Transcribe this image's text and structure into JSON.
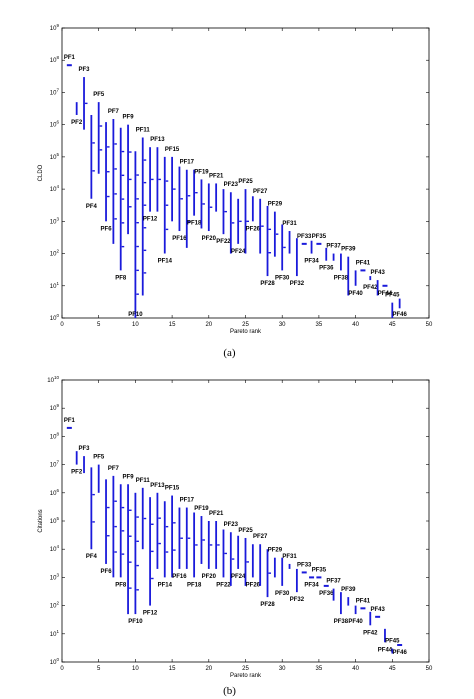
{
  "chart_data": [
    {
      "type": "scatter",
      "caption": "(a)",
      "xlabel": "Pareto rank",
      "ylabel": "CLDO",
      "xlim": [
        0,
        50
      ],
      "ylim": [
        1,
        1000000000
      ],
      "yscale": "log",
      "x_ticks": [
        "0",
        "5",
        "10",
        "15",
        "20",
        "25",
        "30",
        "35",
        "40",
        "45",
        "50"
      ],
      "y_ticks": [
        "10^0",
        "10^1",
        "10^2",
        "10^3",
        "10^4",
        "10^5",
        "10^6",
        "10^7",
        "10^8",
        "10^9"
      ],
      "series_color": "#1a1adb",
      "fronts": [
        {
          "rank": 1,
          "label": "PF1",
          "max": 70000000,
          "min": 70000000
        },
        {
          "rank": 2,
          "label": "PF2",
          "max": 5000000,
          "min": 2000000
        },
        {
          "rank": 3,
          "label": "PF3",
          "max": 30000000,
          "min": 700000
        },
        {
          "rank": 4,
          "label": "PF4",
          "max": 2000000,
          "min": 5000
        },
        {
          "rank": 5,
          "label": "PF5",
          "max": 5000000,
          "min": 30000
        },
        {
          "rank": 6,
          "label": "PF6",
          "max": 1200000,
          "min": 1000
        },
        {
          "rank": 7,
          "label": "PF7",
          "max": 1500000,
          "min": 200
        },
        {
          "rank": 8,
          "label": "PF8",
          "max": 800000,
          "min": 30
        },
        {
          "rank": 9,
          "label": "PF9",
          "max": 1000000,
          "min": 400
        },
        {
          "rank": 10,
          "label": "PF10",
          "max": 150000,
          "min": 1
        },
        {
          "rank": 11,
          "label": "PF11",
          "max": 400000,
          "min": 5
        },
        {
          "rank": 12,
          "label": "PF12",
          "max": 200000,
          "min": 2000
        },
        {
          "rank": 13,
          "label": "PF13",
          "max": 200000,
          "min": 2000
        },
        {
          "rank": 14,
          "label": "PF14",
          "max": 100000,
          "min": 100
        },
        {
          "rank": 15,
          "label": "PF15",
          "max": 100000,
          "min": 1000
        },
        {
          "rank": 16,
          "label": "PF16",
          "max": 50000,
          "min": 500
        },
        {
          "rank": 17,
          "label": "PF17",
          "max": 40000,
          "min": 150
        },
        {
          "rank": 18,
          "label": "PF18",
          "max": 40000,
          "min": 1500
        },
        {
          "rank": 19,
          "label": "PF19",
          "max": 20000,
          "min": 600
        },
        {
          "rank": 20,
          "label": "PF20",
          "max": 15000,
          "min": 500
        },
        {
          "rank": 21,
          "label": "PF21",
          "max": 15000,
          "min": 2000
        },
        {
          "rank": 22,
          "label": "PF22",
          "max": 10000,
          "min": 400
        },
        {
          "rank": 23,
          "label": "PF23",
          "max": 8000,
          "min": 100
        },
        {
          "rank": 24,
          "label": "PF24",
          "max": 5000,
          "min": 200
        },
        {
          "rank": 25,
          "label": "PF25",
          "max": 10000,
          "min": 100
        },
        {
          "rank": 26,
          "label": "PF26",
          "max": 6000,
          "min": 1000
        },
        {
          "rank": 27,
          "label": "PF27",
          "max": 5000,
          "min": 100
        },
        {
          "rank": 28,
          "label": "PF28",
          "max": 3000,
          "min": 20
        },
        {
          "rank": 29,
          "label": "PF29",
          "max": 2000,
          "min": 80
        },
        {
          "rank": 30,
          "label": "PF30",
          "max": 800,
          "min": 30
        },
        {
          "rank": 31,
          "label": "PF31",
          "max": 500,
          "min": 100
        },
        {
          "rank": 32,
          "label": "PF32",
          "max": 300,
          "min": 20
        },
        {
          "rank": 33,
          "label": "PF33",
          "max": 200,
          "min": 200
        },
        {
          "rank": 34,
          "label": "PF34",
          "max": 250,
          "min": 100
        },
        {
          "rank": 35,
          "label": "PF35",
          "max": 200,
          "min": 200
        },
        {
          "rank": 36,
          "label": "PF36",
          "max": 150,
          "min": 60
        },
        {
          "rank": 37,
          "label": "PF37",
          "max": 100,
          "min": 60
        },
        {
          "rank": 38,
          "label": "PF38",
          "max": 100,
          "min": 30
        },
        {
          "rank": 39,
          "label": "PF39",
          "max": 80,
          "min": 5
        },
        {
          "rank": 40,
          "label": "PF40",
          "max": 30,
          "min": 10
        },
        {
          "rank": 41,
          "label": "PF41",
          "max": 30,
          "min": 30
        },
        {
          "rank": 42,
          "label": "PF42",
          "max": 20,
          "min": 15
        },
        {
          "rank": 43,
          "label": "PF43",
          "max": 15,
          "min": 5
        },
        {
          "rank": 44,
          "label": "PF44",
          "max": 10,
          "min": 10
        },
        {
          "rank": 45,
          "label": "PF45",
          "max": 3,
          "min": 1
        },
        {
          "rank": 46,
          "label": "PF46",
          "max": 4,
          "min": 2
        }
      ]
    },
    {
      "type": "scatter",
      "caption": "(b)",
      "xlabel": "Pareto rank",
      "ylabel": "Citations",
      "xlim": [
        0,
        50
      ],
      "ylim": [
        1,
        10000000000
      ],
      "yscale": "log",
      "x_ticks": [
        "0",
        "5",
        "10",
        "15",
        "20",
        "25",
        "30",
        "35",
        "40",
        "45",
        "50"
      ],
      "y_ticks": [
        "10^0",
        "10^1",
        "10^2",
        "10^3",
        "10^4",
        "10^5",
        "10^6",
        "10^7",
        "10^8",
        "10^9",
        "10^10"
      ],
      "series_color": "#1a1adb",
      "fronts": [
        {
          "rank": 1,
          "label": "PF1",
          "max": 200000000,
          "min": 200000000
        },
        {
          "rank": 2,
          "label": "PF2",
          "max": 30000000,
          "min": 10000000
        },
        {
          "rank": 3,
          "label": "PF3",
          "max": 20000000,
          "min": 5000000
        },
        {
          "rank": 4,
          "label": "PF4",
          "max": 8000000,
          "min": 10000
        },
        {
          "rank": 5,
          "label": "PF5",
          "max": 10000000,
          "min": 1000000
        },
        {
          "rank": 6,
          "label": "PF6",
          "max": 3000000,
          "min": 3000
        },
        {
          "rank": 7,
          "label": "PF7",
          "max": 4000000,
          "min": 1000
        },
        {
          "rank": 8,
          "label": "PF8",
          "max": 2000000,
          "min": 1000
        },
        {
          "rank": 9,
          "label": "PF9",
          "max": 2000000,
          "min": 50
        },
        {
          "rank": 10,
          "label": "PF10",
          "max": 1000000,
          "min": 50
        },
        {
          "rank": 11,
          "label": "PF11",
          "max": 1500000,
          "min": 10000
        },
        {
          "rank": 12,
          "label": "PF12",
          "max": 700000,
          "min": 100
        },
        {
          "rank": 13,
          "label": "PF13",
          "max": 1000000,
          "min": 2000
        },
        {
          "rank": 14,
          "label": "PF14",
          "max": 500000,
          "min": 1000
        },
        {
          "rank": 15,
          "label": "PF15",
          "max": 800000,
          "min": 1000
        },
        {
          "rank": 16,
          "label": "PF16",
          "max": 300000,
          "min": 2000
        },
        {
          "rank": 17,
          "label": "PF17",
          "max": 300000,
          "min": 2000
        },
        {
          "rank": 18,
          "label": "PF18",
          "max": 200000,
          "min": 1000
        },
        {
          "rank": 19,
          "label": "PF19",
          "max": 150000,
          "min": 3000
        },
        {
          "rank": 20,
          "label": "PF20",
          "max": 100000,
          "min": 2000
        },
        {
          "rank": 21,
          "label": "PF21",
          "max": 100000,
          "min": 2000
        },
        {
          "rank": 22,
          "label": "PF22",
          "max": 50000,
          "min": 1000
        },
        {
          "rank": 23,
          "label": "PF23",
          "max": 40000,
          "min": 500
        },
        {
          "rank": 24,
          "label": "PF24",
          "max": 30000,
          "min": 2000
        },
        {
          "rank": 25,
          "label": "PF25",
          "max": 25000,
          "min": 500
        },
        {
          "rank": 26,
          "label": "PF26",
          "max": 15000,
          "min": 1000
        },
        {
          "rank": 27,
          "label": "PF27",
          "max": 15000,
          "min": 500
        },
        {
          "rank": 28,
          "label": "PF28",
          "max": 10000,
          "min": 200
        },
        {
          "rank": 29,
          "label": "PF29",
          "max": 5000,
          "min": 1000
        },
        {
          "rank": 30,
          "label": "PF30",
          "max": 5000,
          "min": 500
        },
        {
          "rank": 31,
          "label": "PF31",
          "max": 3000,
          "min": 2000
        },
        {
          "rank": 32,
          "label": "PF32",
          "max": 2000,
          "min": 300
        },
        {
          "rank": 33,
          "label": "PF33",
          "max": 1500,
          "min": 1500
        },
        {
          "rank": 34,
          "label": "PF34",
          "max": 1000,
          "min": 1000
        },
        {
          "rank": 35,
          "label": "PF35",
          "max": 1000,
          "min": 1000
        },
        {
          "rank": 36,
          "label": "PF36",
          "max": 500,
          "min": 500
        },
        {
          "rank": 37,
          "label": "PF37",
          "max": 400,
          "min": 150
        },
        {
          "rank": 38,
          "label": "PF38",
          "max": 300,
          "min": 50
        },
        {
          "rank": 39,
          "label": "PF39",
          "max": 200,
          "min": 100
        },
        {
          "rank": 40,
          "label": "PF40",
          "max": 100,
          "min": 50
        },
        {
          "rank": 41,
          "label": "PF41",
          "max": 80,
          "min": 80
        },
        {
          "rank": 42,
          "label": "PF42",
          "max": 60,
          "min": 20
        },
        {
          "rank": 43,
          "label": "PF43",
          "max": 40,
          "min": 40
        },
        {
          "rank": 44,
          "label": "PF44",
          "max": 15,
          "min": 5
        },
        {
          "rank": 45,
          "label": "PF45",
          "max": 3,
          "min": 2
        },
        {
          "rank": 46,
          "label": "PF46",
          "max": 4,
          "min": 4
        }
      ]
    }
  ]
}
